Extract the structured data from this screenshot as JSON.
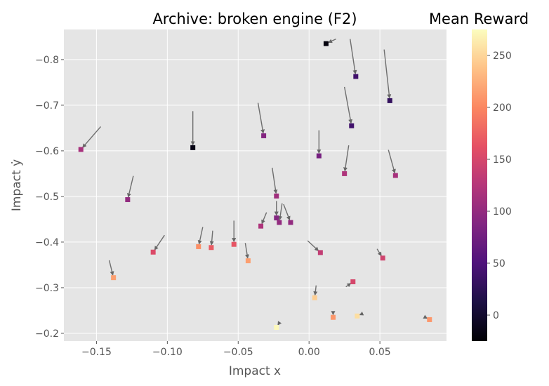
{
  "chart_data": {
    "type": "scatter",
    "title": "Archive: broken engine (F2)",
    "xlabel": "Impact x",
    "ylabel": "Impact ẏ",
    "xlim": [
      -0.173,
      0.097
    ],
    "ylim": [
      -0.183,
      -0.866
    ],
    "y_inverted": true,
    "grid": true,
    "x_ticks": [
      -0.15,
      -0.1,
      -0.05,
      0.0,
      0.05
    ],
    "x_tick_labels": [
      "−0.15",
      "−0.10",
      "−0.05",
      "0.00",
      "0.05"
    ],
    "y_ticks": [
      -0.8,
      -0.7,
      -0.6,
      -0.5,
      -0.4,
      -0.3,
      -0.2
    ],
    "y_tick_labels": [
      "−0.8",
      "−0.7",
      "−0.6",
      "−0.5",
      "−0.4",
      "−0.3",
      "−0.2"
    ],
    "colorbar": {
      "label": "Mean Reward",
      "colormap": "magma",
      "range": [
        -25,
        275
      ],
      "ticks": [
        0,
        50,
        100,
        150,
        200,
        250
      ],
      "tick_labels": [
        "0",
        "50",
        "100",
        "150",
        "200",
        "250"
      ]
    },
    "points": [
      {
        "x": 0.012,
        "y": -0.835,
        "reward": -20,
        "arrow_from": [
          0.019,
          -0.845
        ]
      },
      {
        "x": 0.033,
        "y": -0.763,
        "reward": 40,
        "arrow_from": [
          0.029,
          -0.845
        ]
      },
      {
        "x": 0.057,
        "y": -0.71,
        "reward": 30,
        "arrow_from": [
          0.053,
          -0.822
        ]
      },
      {
        "x": 0.03,
        "y": -0.655,
        "reward": 40,
        "arrow_from": [
          0.025,
          -0.74
        ]
      },
      {
        "x": -0.082,
        "y": -0.607,
        "reward": -15,
        "arrow_from": [
          -0.082,
          -0.687
        ]
      },
      {
        "x": -0.161,
        "y": -0.603,
        "reward": 115,
        "arrow_from": [
          -0.147,
          -0.653
        ]
      },
      {
        "x": -0.032,
        "y": -0.633,
        "reward": 90,
        "arrow_from": [
          -0.036,
          -0.705
        ]
      },
      {
        "x": 0.007,
        "y": -0.589,
        "reward": 80,
        "arrow_from": [
          0.007,
          -0.645
        ]
      },
      {
        "x": 0.025,
        "y": -0.55,
        "reward": 120,
        "arrow_from": [
          0.028,
          -0.612
        ]
      },
      {
        "x": 0.061,
        "y": -0.546,
        "reward": 115,
        "arrow_from": [
          0.056,
          -0.602
        ]
      },
      {
        "x": -0.128,
        "y": -0.493,
        "reward": 100,
        "arrow_from": [
          -0.124,
          -0.545
        ]
      },
      {
        "x": -0.023,
        "y": -0.501,
        "reward": 110,
        "arrow_from": [
          -0.026,
          -0.563
        ]
      },
      {
        "x": -0.023,
        "y": -0.453,
        "reward": 90,
        "arrow_from": [
          -0.023,
          -0.49
        ]
      },
      {
        "x": -0.021,
        "y": -0.443,
        "reward": 100,
        "arrow_from": [
          -0.019,
          -0.485
        ]
      },
      {
        "x": -0.013,
        "y": -0.443,
        "reward": 100,
        "arrow_from": [
          -0.018,
          -0.483
        ]
      },
      {
        "x": -0.034,
        "y": -0.435,
        "reward": 120,
        "arrow_from": [
          -0.03,
          -0.465
        ]
      },
      {
        "x": -0.11,
        "y": -0.378,
        "reward": 155,
        "arrow_from": [
          -0.102,
          -0.415
        ]
      },
      {
        "x": -0.078,
        "y": -0.39,
        "reward": 205,
        "arrow_from": [
          -0.075,
          -0.433
        ]
      },
      {
        "x": -0.069,
        "y": -0.388,
        "reward": 170,
        "arrow_from": [
          -0.068,
          -0.425
        ]
      },
      {
        "x": -0.053,
        "y": -0.395,
        "reward": 165,
        "arrow_from": [
          -0.053,
          -0.447
        ]
      },
      {
        "x": 0.008,
        "y": -0.377,
        "reward": 135,
        "arrow_from": [
          -0.001,
          -0.403
        ]
      },
      {
        "x": 0.052,
        "y": -0.365,
        "reward": 145,
        "arrow_from": [
          0.048,
          -0.385
        ]
      },
      {
        "x": -0.043,
        "y": -0.359,
        "reward": 215,
        "arrow_from": [
          -0.045,
          -0.398
        ]
      },
      {
        "x": -0.138,
        "y": -0.322,
        "reward": 215,
        "arrow_from": [
          -0.141,
          -0.36
        ]
      },
      {
        "x": 0.031,
        "y": -0.313,
        "reward": 150,
        "arrow_from": [
          0.026,
          -0.302
        ]
      },
      {
        "x": 0.004,
        "y": -0.278,
        "reward": 245,
        "arrow_from": [
          0.005,
          -0.305
        ]
      },
      {
        "x": 0.017,
        "y": -0.235,
        "reward": 210,
        "arrow_from": [
          0.017,
          -0.247
        ]
      },
      {
        "x": 0.034,
        "y": -0.238,
        "reward": 255,
        "arrow_from": [
          0.037,
          -0.242
        ]
      },
      {
        "x": 0.085,
        "y": -0.23,
        "reward": 210,
        "arrow_from": [
          0.082,
          -0.235
        ]
      },
      {
        "x": -0.023,
        "y": -0.213,
        "reward": 272,
        "arrow_from": [
          -0.021,
          -0.223
        ]
      }
    ]
  }
}
